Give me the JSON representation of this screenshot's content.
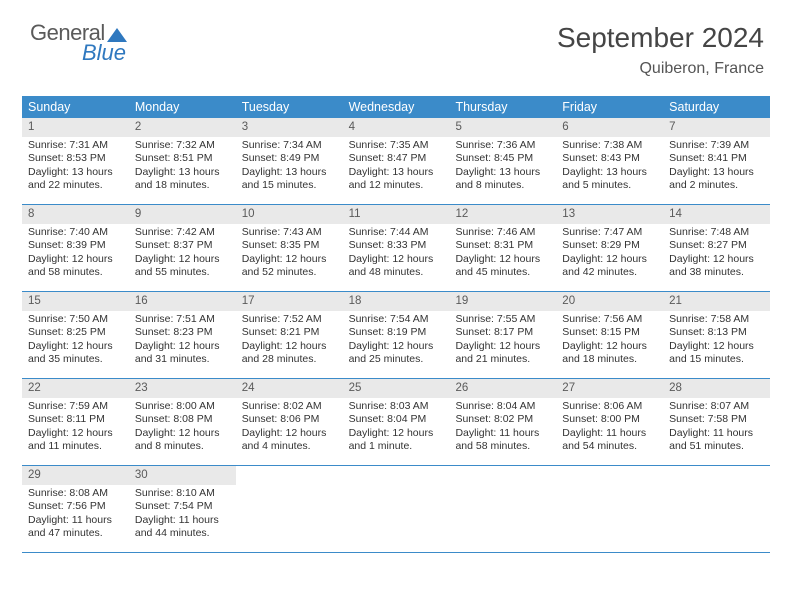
{
  "logo": {
    "word1": "General",
    "word2": "Blue"
  },
  "title": "September 2024",
  "location": "Quiberon, France",
  "colors": {
    "header_bar": "#3b8bc9",
    "daynum_bg": "#e9e9e9",
    "title_color": "#454545",
    "logo_blue": "#2f78bf"
  },
  "dow": [
    "Sunday",
    "Monday",
    "Tuesday",
    "Wednesday",
    "Thursday",
    "Friday",
    "Saturday"
  ],
  "weeks": [
    [
      {
        "n": "1",
        "sr": "Sunrise: 7:31 AM",
        "ss": "Sunset: 8:53 PM",
        "d1": "Daylight: 13 hours",
        "d2": "and 22 minutes."
      },
      {
        "n": "2",
        "sr": "Sunrise: 7:32 AM",
        "ss": "Sunset: 8:51 PM",
        "d1": "Daylight: 13 hours",
        "d2": "and 18 minutes."
      },
      {
        "n": "3",
        "sr": "Sunrise: 7:34 AM",
        "ss": "Sunset: 8:49 PM",
        "d1": "Daylight: 13 hours",
        "d2": "and 15 minutes."
      },
      {
        "n": "4",
        "sr": "Sunrise: 7:35 AM",
        "ss": "Sunset: 8:47 PM",
        "d1": "Daylight: 13 hours",
        "d2": "and 12 minutes."
      },
      {
        "n": "5",
        "sr": "Sunrise: 7:36 AM",
        "ss": "Sunset: 8:45 PM",
        "d1": "Daylight: 13 hours",
        "d2": "and 8 minutes."
      },
      {
        "n": "6",
        "sr": "Sunrise: 7:38 AM",
        "ss": "Sunset: 8:43 PM",
        "d1": "Daylight: 13 hours",
        "d2": "and 5 minutes."
      },
      {
        "n": "7",
        "sr": "Sunrise: 7:39 AM",
        "ss": "Sunset: 8:41 PM",
        "d1": "Daylight: 13 hours",
        "d2": "and 2 minutes."
      }
    ],
    [
      {
        "n": "8",
        "sr": "Sunrise: 7:40 AM",
        "ss": "Sunset: 8:39 PM",
        "d1": "Daylight: 12 hours",
        "d2": "and 58 minutes."
      },
      {
        "n": "9",
        "sr": "Sunrise: 7:42 AM",
        "ss": "Sunset: 8:37 PM",
        "d1": "Daylight: 12 hours",
        "d2": "and 55 minutes."
      },
      {
        "n": "10",
        "sr": "Sunrise: 7:43 AM",
        "ss": "Sunset: 8:35 PM",
        "d1": "Daylight: 12 hours",
        "d2": "and 52 minutes."
      },
      {
        "n": "11",
        "sr": "Sunrise: 7:44 AM",
        "ss": "Sunset: 8:33 PM",
        "d1": "Daylight: 12 hours",
        "d2": "and 48 minutes."
      },
      {
        "n": "12",
        "sr": "Sunrise: 7:46 AM",
        "ss": "Sunset: 8:31 PM",
        "d1": "Daylight: 12 hours",
        "d2": "and 45 minutes."
      },
      {
        "n": "13",
        "sr": "Sunrise: 7:47 AM",
        "ss": "Sunset: 8:29 PM",
        "d1": "Daylight: 12 hours",
        "d2": "and 42 minutes."
      },
      {
        "n": "14",
        "sr": "Sunrise: 7:48 AM",
        "ss": "Sunset: 8:27 PM",
        "d1": "Daylight: 12 hours",
        "d2": "and 38 minutes."
      }
    ],
    [
      {
        "n": "15",
        "sr": "Sunrise: 7:50 AM",
        "ss": "Sunset: 8:25 PM",
        "d1": "Daylight: 12 hours",
        "d2": "and 35 minutes."
      },
      {
        "n": "16",
        "sr": "Sunrise: 7:51 AM",
        "ss": "Sunset: 8:23 PM",
        "d1": "Daylight: 12 hours",
        "d2": "and 31 minutes."
      },
      {
        "n": "17",
        "sr": "Sunrise: 7:52 AM",
        "ss": "Sunset: 8:21 PM",
        "d1": "Daylight: 12 hours",
        "d2": "and 28 minutes."
      },
      {
        "n": "18",
        "sr": "Sunrise: 7:54 AM",
        "ss": "Sunset: 8:19 PM",
        "d1": "Daylight: 12 hours",
        "d2": "and 25 minutes."
      },
      {
        "n": "19",
        "sr": "Sunrise: 7:55 AM",
        "ss": "Sunset: 8:17 PM",
        "d1": "Daylight: 12 hours",
        "d2": "and 21 minutes."
      },
      {
        "n": "20",
        "sr": "Sunrise: 7:56 AM",
        "ss": "Sunset: 8:15 PM",
        "d1": "Daylight: 12 hours",
        "d2": "and 18 minutes."
      },
      {
        "n": "21",
        "sr": "Sunrise: 7:58 AM",
        "ss": "Sunset: 8:13 PM",
        "d1": "Daylight: 12 hours",
        "d2": "and 15 minutes."
      }
    ],
    [
      {
        "n": "22",
        "sr": "Sunrise: 7:59 AM",
        "ss": "Sunset: 8:11 PM",
        "d1": "Daylight: 12 hours",
        "d2": "and 11 minutes."
      },
      {
        "n": "23",
        "sr": "Sunrise: 8:00 AM",
        "ss": "Sunset: 8:08 PM",
        "d1": "Daylight: 12 hours",
        "d2": "and 8 minutes."
      },
      {
        "n": "24",
        "sr": "Sunrise: 8:02 AM",
        "ss": "Sunset: 8:06 PM",
        "d1": "Daylight: 12 hours",
        "d2": "and 4 minutes."
      },
      {
        "n": "25",
        "sr": "Sunrise: 8:03 AM",
        "ss": "Sunset: 8:04 PM",
        "d1": "Daylight: 12 hours",
        "d2": "and 1 minute."
      },
      {
        "n": "26",
        "sr": "Sunrise: 8:04 AM",
        "ss": "Sunset: 8:02 PM",
        "d1": "Daylight: 11 hours",
        "d2": "and 58 minutes."
      },
      {
        "n": "27",
        "sr": "Sunrise: 8:06 AM",
        "ss": "Sunset: 8:00 PM",
        "d1": "Daylight: 11 hours",
        "d2": "and 54 minutes."
      },
      {
        "n": "28",
        "sr": "Sunrise: 8:07 AM",
        "ss": "Sunset: 7:58 PM",
        "d1": "Daylight: 11 hours",
        "d2": "and 51 minutes."
      }
    ],
    [
      {
        "n": "29",
        "sr": "Sunrise: 8:08 AM",
        "ss": "Sunset: 7:56 PM",
        "d1": "Daylight: 11 hours",
        "d2": "and 47 minutes."
      },
      {
        "n": "30",
        "sr": "Sunrise: 8:10 AM",
        "ss": "Sunset: 7:54 PM",
        "d1": "Daylight: 11 hours",
        "d2": "and 44 minutes."
      },
      {
        "empty": true
      },
      {
        "empty": true
      },
      {
        "empty": true
      },
      {
        "empty": true
      },
      {
        "empty": true
      }
    ]
  ]
}
